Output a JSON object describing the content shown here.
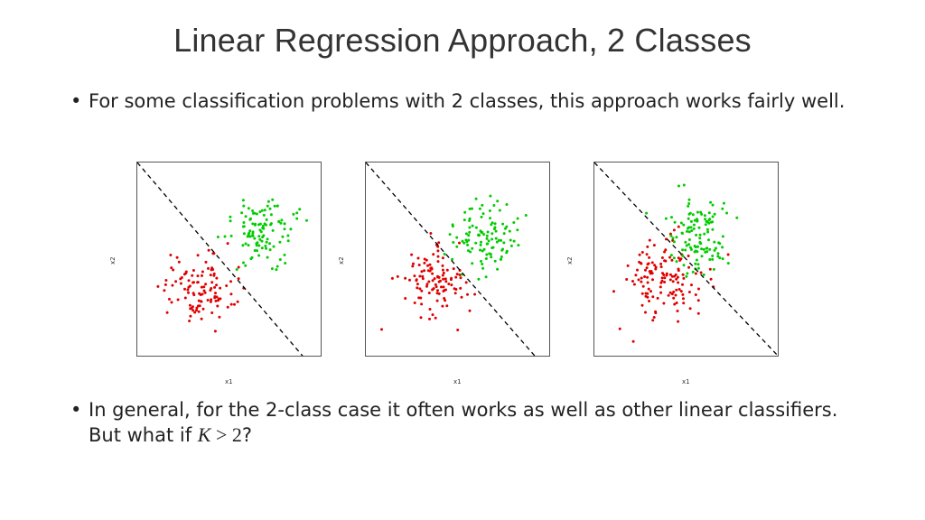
{
  "slide": {
    "title": "Linear Regression Approach, 2 Classes",
    "bullet1": "For some classification problems with 2 classes, this approach works fairly well.",
    "bullet2_prefix": "In general, for the 2-class case it often works as well as other linear classifiers.  But what if ",
    "bullet2_var": "K",
    "bullet2_op": " > ",
    "bullet2_num": "2",
    "bullet2_suffix": "?"
  },
  "colors": {
    "class1": "#e00000",
    "class2": "#00cc00",
    "boundary": "#000000"
  },
  "chart_data": [
    {
      "type": "scatter",
      "xlabel": "x1",
      "ylabel": "x2",
      "grid": false,
      "series": [
        {
          "color": "#e00000",
          "center": [
            0.3,
            0.33
          ],
          "spread": [
            0.11,
            0.1
          ],
          "count": 110
        },
        {
          "color": "#00cc00",
          "center": [
            0.7,
            0.67
          ],
          "spread": [
            0.1,
            0.1
          ],
          "count": 110
        }
      ],
      "decision_boundary": {
        "style": "dashed",
        "from": [
          0.0,
          1.0
        ],
        "to": [
          0.9,
          0.0
        ]
      }
    },
    {
      "type": "scatter",
      "xlabel": "x1",
      "ylabel": "x2",
      "grid": false,
      "series": [
        {
          "color": "#e00000",
          "center": [
            0.34,
            0.36
          ],
          "spread": [
            0.1,
            0.1
          ],
          "count": 110
        },
        {
          "color": "#00cc00",
          "center": [
            0.66,
            0.63
          ],
          "spread": [
            0.1,
            0.09
          ],
          "count": 110
        }
      ],
      "decision_boundary": {
        "style": "dashed",
        "from": [
          0.0,
          1.0
        ],
        "to": [
          0.92,
          0.0
        ]
      }
    },
    {
      "type": "scatter",
      "xlabel": "x1",
      "ylabel": "x2",
      "grid": false,
      "series": [
        {
          "color": "#e00000",
          "center": [
            0.36,
            0.4
          ],
          "spread": [
            0.13,
            0.12
          ],
          "count": 130
        },
        {
          "color": "#00cc00",
          "center": [
            0.58,
            0.63
          ],
          "spread": [
            0.11,
            0.11
          ],
          "count": 120
        }
      ],
      "decision_boundary": {
        "style": "dashed",
        "from": [
          0.0,
          1.0
        ],
        "to": [
          1.0,
          0.0
        ]
      }
    }
  ]
}
